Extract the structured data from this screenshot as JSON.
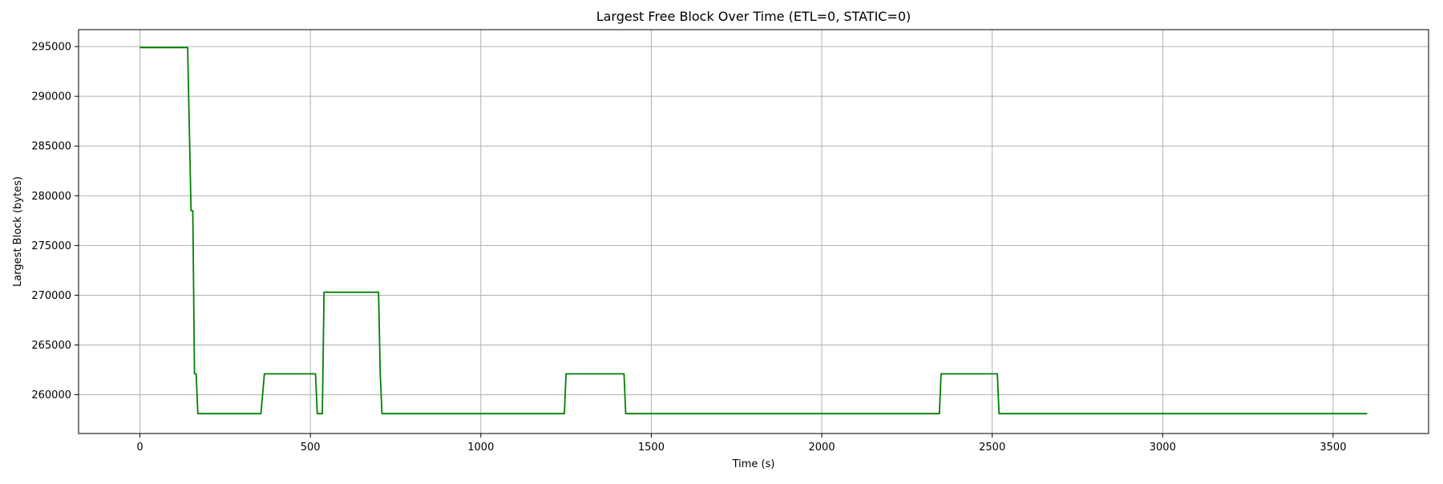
{
  "chart_data": {
    "type": "line",
    "title": "Largest Free Block Over Time (ETL=0, STATIC=0)",
    "xlabel": "Time (s)",
    "ylabel": "Largest Block (bytes)",
    "xlim": [
      -180,
      3780
    ],
    "ylim": [
      256100,
      296700
    ],
    "xticks": [
      0,
      500,
      1000,
      1500,
      2000,
      2500,
      3000,
      3500
    ],
    "xtick_labels": [
      "0",
      "500",
      "1000",
      "1500",
      "2000",
      "2500",
      "3000",
      "3500"
    ],
    "yticks": [
      260000,
      265000,
      270000,
      275000,
      280000,
      285000,
      290000,
      295000
    ],
    "ytick_labels": [
      "260000",
      "265000",
      "270000",
      "275000",
      "280000",
      "285000",
      "290000",
      "295000"
    ],
    "grid": true,
    "series": [
      {
        "color": "#008000",
        "x": [
          0,
          140,
          150,
          155,
          160,
          165,
          170,
          175,
          355,
          365,
          515,
          520,
          535,
          540,
          700,
          705,
          710,
          1245,
          1250,
          1420,
          1425,
          2345,
          2350,
          2515,
          2520,
          3600
        ],
        "y": [
          294900,
          294900,
          278500,
          278500,
          262100,
          262100,
          258100,
          258100,
          258100,
          262100,
          262100,
          258100,
          258100,
          270300,
          270300,
          262100,
          258100,
          258100,
          262100,
          262100,
          258100,
          258100,
          262100,
          262100,
          258100,
          258100
        ]
      }
    ]
  }
}
